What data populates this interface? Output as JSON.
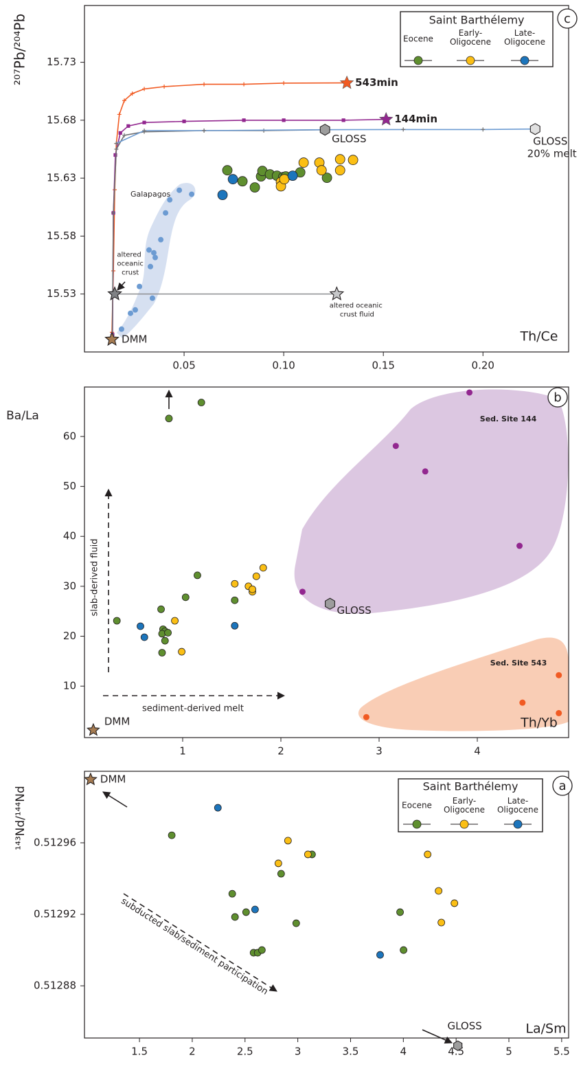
{
  "chart_data": [
    {
      "type": "scatter",
      "panel_label": "c",
      "xlabel": "Th/Ce",
      "ylabel": "²⁰⁷Pb/²⁰⁴Pb",
      "xlim": [
        0,
        0.243
      ],
      "ylim": [
        15.48,
        15.779
      ],
      "xticks": [
        0.05,
        {
          "value": 0.1,
          "label": "0.10"
        },
        0.15,
        {
          "value": 0.2,
          "label": "0.20"
        }
      ],
      "yticks": [
        15.53,
        15.58,
        15.63,
        15.68,
        15.73
      ],
      "legend": {
        "title": "Saint Barthélemy"
      },
      "series": [
        {
          "name": "Eocene",
          "color": "#5f8f2f",
          "x": [
            0.0717,
            0.0793,
            0.0855,
            0.0886,
            0.0893,
            0.0931,
            0.0966,
            0.0997,
            0.101,
            0.1083,
            0.1217
          ],
          "y": [
            15.6368,
            15.6273,
            15.622,
            15.6315,
            15.6362,
            15.6333,
            15.6321,
            15.6309,
            15.6315,
            15.635,
            15.6303
          ]
        },
        {
          "name": "Early-Oligocene",
          "color": "#fbbf15",
          "x": [
            0.0986,
            0.0986,
            0.1003,
            0.11,
            0.1179,
            0.119,
            0.1283,
            0.1283,
            0.1348
          ],
          "y": [
            15.6267,
            15.623,
            15.6291,
            15.6434,
            15.6434,
            15.6368,
            15.6463,
            15.6368,
            15.6457
          ]
        },
        {
          "name": "Late-Oligocene",
          "color": "#1c75bc",
          "x": [
            0.0693,
            0.0745,
            0.1045
          ],
          "y": [
            15.6155,
            15.6291,
            15.6321
          ]
        }
      ],
      "fields": [
        {
          "name": "Galapagos",
          "color": "#6c9bd2",
          "x": [
            0.0186,
            0.0231,
            0.0255,
            0.0276,
            0.0341,
            0.0324,
            0.0331,
            0.0348,
            0.0355,
            0.0383,
            0.0407,
            0.0428,
            0.0476,
            0.0538
          ],
          "y": [
            15.4997,
            15.5134,
            15.5163,
            15.5365,
            15.5264,
            15.568,
            15.5537,
            15.5656,
            15.5615,
            15.5769,
            15.6,
            15.6113,
            15.6196,
            15.6161
          ]
        }
      ],
      "lines": [
        {
          "name": "543min",
          "color": "#f15a22",
          "marker": "plus",
          "end_marker": "star",
          "x": [
            0.0138,
            0.0145,
            0.0152,
            0.016,
            0.0175,
            0.02,
            0.024,
            0.03,
            0.04,
            0.06,
            0.08,
            0.1,
            0.1317
          ],
          "y": [
            15.497,
            15.55,
            15.62,
            15.66,
            15.685,
            15.697,
            15.703,
            15.707,
            15.709,
            15.711,
            15.711,
            15.712,
            15.7122
          ]
        },
        {
          "name": "144min",
          "color": "#92278f",
          "marker": "square",
          "end_marker": "star",
          "x": [
            0.0141,
            0.0145,
            0.0155,
            0.018,
            0.022,
            0.03,
            0.05,
            0.08,
            0.1,
            0.13,
            0.1514
          ],
          "y": [
            15.495,
            15.6,
            15.65,
            15.669,
            15.675,
            15.678,
            15.679,
            15.68,
            15.68,
            15.68,
            15.6807
          ]
        },
        {
          "color": "#6d6e71",
          "marker": "plus",
          "x": [
            0.014,
            0.0145,
            0.016,
            0.02,
            0.03,
            0.06,
            0.09,
            0.1207
          ],
          "y": [
            15.495,
            15.6,
            15.655,
            15.667,
            15.67,
            15.671,
            15.671,
            15.6718
          ]
        },
        {
          "color": "#6c9bd2",
          "marker": "plus",
          "marker_color": "#6d6e71",
          "x": [
            0.016,
            0.03,
            0.06,
            0.1207,
            0.16,
            0.2,
            0.2262
          ],
          "y": [
            15.66,
            15.671,
            15.671,
            15.6718,
            15.672,
            15.672,
            15.6724
          ]
        },
        {
          "color": "#939598",
          "x": [
            0.0152,
            0.1266
          ],
          "y": [
            15.53,
            15.53
          ]
        }
      ],
      "endmembers": [
        {
          "label": "DMM",
          "marker": "star",
          "color": "#a67c52",
          "x": 0.0138,
          "y": 15.4908
        },
        {
          "label": "GLOSS",
          "marker": "hexagon",
          "color": "#9d9d9d",
          "x": 0.1207,
          "y": 15.6718
        },
        {
          "label": "GLOSS 20% melt",
          "marker": "hexagon",
          "color": "#e0e0e0",
          "x": 0.2262,
          "y": 15.6724
        },
        {
          "label": "altered oceanic crust",
          "marker": "star",
          "color": "#808285",
          "x": 0.0152,
          "y": 15.53
        },
        {
          "label": "altered oceanic crust fluid",
          "marker": "star",
          "color": "#c7c8ca",
          "x": 0.1266,
          "y": 15.53
        }
      ]
    },
    {
      "type": "scatter",
      "panel_label": "b",
      "xlabel": "Th/Yb",
      "ylabel": "Ba/La",
      "xlim": [
        0,
        4.93
      ],
      "ylim": [
        -0.3,
        69.9
      ],
      "xticks": [
        1,
        2,
        3,
        4
      ],
      "yticks": [
        10,
        20,
        30,
        40,
        50,
        60
      ],
      "series": [
        {
          "color": "#5f8f2f",
          "x": [
            0.86,
            1.19,
            0.33,
            0.78,
            0.8,
            0.82,
            0.79,
            0.85,
            0.82,
            0.79,
            1.03,
            1.15,
            1.53
          ],
          "y": [
            63.6,
            66.8,
            23.1,
            25.4,
            21.4,
            21.0,
            20.5,
            20.7,
            19.1,
            16.7,
            27.8,
            32.2,
            27.2
          ]
        },
        {
          "color": "#fbbf15",
          "x": [
            0.92,
            0.99,
            1.53,
            1.67,
            1.71,
            1.71,
            1.75,
            1.82
          ],
          "y": [
            23.1,
            16.9,
            30.5,
            30.0,
            28.9,
            29.4,
            32.0,
            33.7
          ]
        },
        {
          "color": "#1c75bc",
          "x": [
            0.57,
            0.61,
            1.53
          ],
          "y": [
            22.0,
            19.8,
            22.1
          ]
        }
      ],
      "fields": [
        {
          "name": "Sed. Site 144",
          "color": "#92278f",
          "x": [
            3.92,
            3.17,
            3.47,
            4.43,
            2.22
          ],
          "y": [
            68.8,
            58.1,
            53.0,
            38.1,
            28.9
          ]
        },
        {
          "name": "Sed. Site 543",
          "color": "#f15a22",
          "x": [
            2.87,
            4.83,
            4.46,
            4.83
          ],
          "y": [
            3.8,
            12.2,
            6.7,
            4.6
          ]
        }
      ],
      "endmembers": [
        {
          "label": "GLOSS",
          "marker": "hexagon",
          "color": "#9d9d9d",
          "x": 2.5,
          "y": 26.5
        },
        {
          "label": "DMM",
          "marker": "star",
          "color": "#a67c52",
          "x": 0.09,
          "y": 1.2
        }
      ],
      "annotations": [
        "slab-derived fluid",
        "sediment-derived melt"
      ]
    },
    {
      "type": "scatter",
      "panel_label": "a",
      "xlabel": "La/Sm",
      "ylabel": "¹⁴³Nd/¹⁴⁴Nd",
      "xlim": [
        0.979,
        5.566
      ],
      "ylim": [
        0.5128508,
        0.513
      ],
      "xticks": [
        1.5,
        2,
        2.5,
        3,
        3.5,
        4,
        4.5,
        5,
        5.5
      ],
      "yticks": [
        0.51288,
        0.51292,
        0.51296
      ],
      "legend": {
        "title": "Saint Barthélemy"
      },
      "series": [
        {
          "name": "Eocene",
          "color": "#5f8f2f",
          "x": [
            1.806,
            3.135,
            2.842,
            2.379,
            2.405,
            2.51,
            2.985,
            3.969,
            4.002,
            2.581,
            2.62,
            2.66
          ],
          "y": [
            0.5129642,
            0.5129535,
            0.5129427,
            0.5129315,
            0.5129185,
            0.5129212,
            0.512915,
            0.5129212,
            0.5129,
            0.5128985,
            0.5128985,
            0.5129
          ]
        },
        {
          "name": "Early-Oligocene",
          "color": "#fbbf15",
          "x": [
            2.907,
            2.816,
            3.096,
            4.23,
            4.334,
            4.484,
            4.36
          ],
          "y": [
            0.5129612,
            0.5129485,
            0.5129535,
            0.5129535,
            0.5129331,
            0.5129262,
            0.5129154
          ]
        },
        {
          "name": "Late-Oligocene",
          "color": "#1c75bc",
          "x": [
            2.243,
            2.595,
            3.78
          ],
          "y": [
            0.5129796,
            0.5129227,
            0.5128973
          ]
        }
      ],
      "endmembers": [
        {
          "label": "DMM",
          "marker": "star",
          "color": "#a67c52",
          "x": 1.037,
          "y": 0.5129954
        },
        {
          "label": "GLOSS",
          "marker": "hexagon",
          "color": "#9d9d9d",
          "x": 4.516,
          "y": 0.5128465
        }
      ],
      "annotations": [
        "subducted slab/sediment participation"
      ]
    }
  ]
}
